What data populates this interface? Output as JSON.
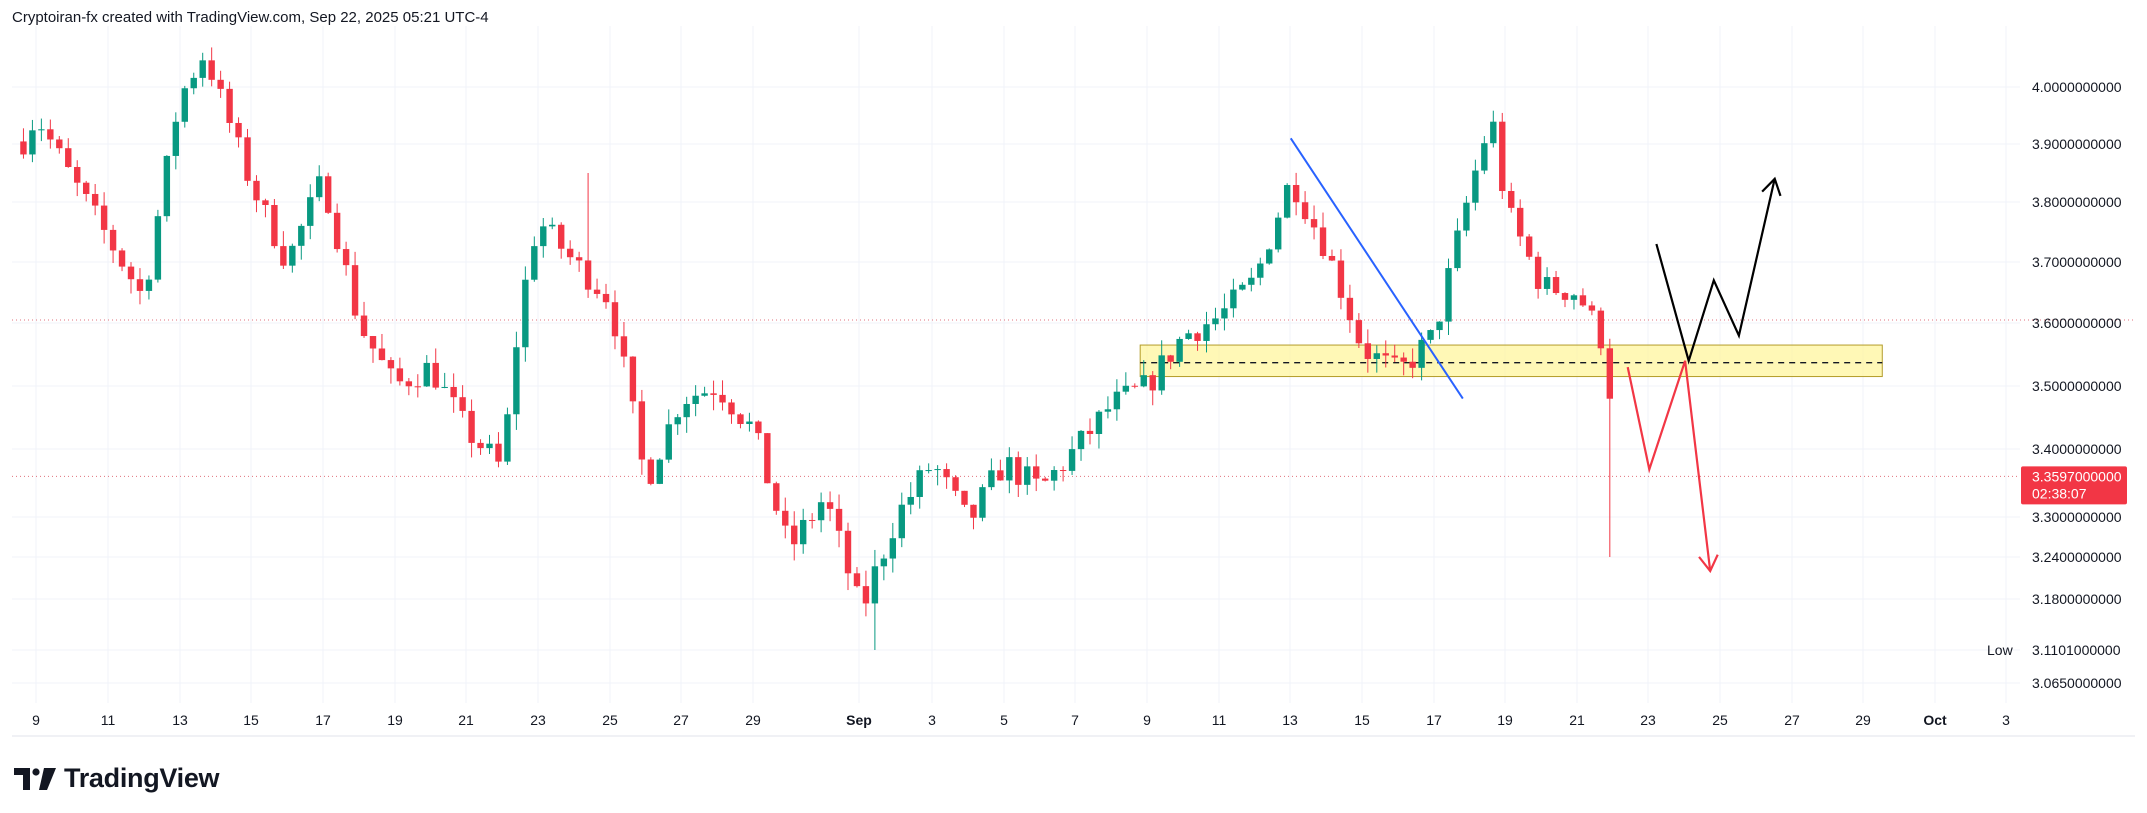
{
  "header": {
    "attribution": "Cryptoiran-fx created with TradingView.com, Sep 22, 2025 05:21 UTC-4"
  },
  "branding": {
    "logo_icon": "tradingview-logo-icon",
    "name": "TradingView"
  },
  "colors": {
    "up": "#089981",
    "down": "#f23645",
    "trendline": "#2962ff",
    "zone_fill": "#fff59d",
    "zone_stroke": "#b39c2a",
    "last_price_bg": "#f23645",
    "ref_line": "#e0727c"
  },
  "chart_data": {
    "type": "candlestick",
    "title": "",
    "xlabel": "",
    "ylabel": "",
    "ylim": [
      3.05,
      4.08
    ],
    "grid": true,
    "x_ticks": [
      "9",
      "11",
      "13",
      "15",
      "17",
      "19",
      "21",
      "23",
      "25",
      "27",
      "29",
      "Sep",
      "3",
      "5",
      "7",
      "9",
      "11",
      "13",
      "15",
      "17",
      "19",
      "21",
      "23",
      "25",
      "27",
      "29",
      "Oct",
      "3"
    ],
    "y_ticks": [
      "4.0000000000",
      "3.9000000000",
      "3.8000000000",
      "3.7000000000",
      "3.6000000000",
      "3.5000000000",
      "3.4000000000",
      "3.3000000000",
      "3.2400000000",
      "3.1800000000",
      "3.1101000000",
      "3.0650000000"
    ],
    "low_label": "Low",
    "low_value": 3.1101,
    "last_price": {
      "value": "3.3597000000",
      "countdown": "02:38:07"
    },
    "reference_level": 3.605,
    "path_anchors": [
      {
        "date": "Aug 8",
        "price": 3.82
      },
      {
        "date": "Aug 9",
        "price": 3.95
      },
      {
        "date": "Aug 10",
        "price": 3.84
      },
      {
        "date": "Aug 11",
        "price": 3.74
      },
      {
        "date": "Aug 12",
        "price": 3.64
      },
      {
        "date": "Aug 13",
        "price": 3.98
      },
      {
        "date": "Aug 13.7",
        "price": 4.06
      },
      {
        "date": "Aug 15",
        "price": 3.83
      },
      {
        "date": "Aug 16",
        "price": 3.7
      },
      {
        "date": "Aug 17",
        "price": 3.84
      },
      {
        "date": "Aug 18",
        "price": 3.6
      },
      {
        "date": "Aug 19",
        "price": 3.5
      },
      {
        "date": "Aug 20",
        "price": 3.53
      },
      {
        "date": "Aug 21",
        "price": 3.43
      },
      {
        "date": "Aug 22",
        "price": 3.37
      },
      {
        "date": "Aug 22.5",
        "price": 3.62
      },
      {
        "date": "Aug 23",
        "price": 3.77
      },
      {
        "date": "Aug 24",
        "price": 3.7
      },
      {
        "date": "Aug 25",
        "price": 3.64
      },
      {
        "date": "Aug 25.5",
        "price": 3.5
      },
      {
        "date": "Aug 26",
        "price": 3.35
      },
      {
        "date": "Aug 27",
        "price": 3.48
      },
      {
        "date": "Aug 28",
        "price": 3.5
      },
      {
        "date": "Aug 29",
        "price": 3.43
      },
      {
        "date": "Aug 30",
        "price": 3.25
      },
      {
        "date": "Aug 31",
        "price": 3.33
      },
      {
        "date": "Sep 1",
        "price": 3.16
      },
      {
        "date": "Sep 2",
        "price": 3.3
      },
      {
        "date": "Sep 3",
        "price": 3.38
      },
      {
        "date": "Sep 4",
        "price": 3.29
      },
      {
        "date": "Sep 5",
        "price": 3.38
      },
      {
        "date": "Sep 6",
        "price": 3.34
      },
      {
        "date": "Sep 7",
        "price": 3.4
      },
      {
        "date": "Sep 8",
        "price": 3.47
      },
      {
        "date": "Sep 9",
        "price": 3.5
      },
      {
        "date": "Sep 10",
        "price": 3.58
      },
      {
        "date": "Sep 11",
        "price": 3.61
      },
      {
        "date": "Sep 12",
        "price": 3.67
      },
      {
        "date": "Sep 13",
        "price": 3.84
      },
      {
        "date": "Sep 14",
        "price": 3.72
      },
      {
        "date": "Sep 15",
        "price": 3.56
      },
      {
        "date": "Sep 16",
        "price": 3.52
      },
      {
        "date": "Sep 17",
        "price": 3.58
      },
      {
        "date": "Sep 18",
        "price": 3.82
      },
      {
        "date": "Sep 18.6",
        "price": 3.95
      },
      {
        "date": "Sep 19",
        "price": 3.79
      },
      {
        "date": "Sep 20",
        "price": 3.66
      },
      {
        "date": "Sep 21",
        "price": 3.65
      },
      {
        "date": "Sep 21.8",
        "price": 3.56
      },
      {
        "date": "Sep 22.1",
        "price": 3.36
      }
    ],
    "annotations": [
      {
        "type": "trendline",
        "from": {
          "date": "Sep 13",
          "price": 3.91
        },
        "to": {
          "date": "Sep 17.8",
          "price": 3.48
        }
      },
      {
        "type": "zone",
        "from_date": "Sep 8.8",
        "to_date": "Sep 29.5",
        "top": 3.565,
        "bottom": 3.515,
        "midline": 3.537
      },
      {
        "type": "projection-up",
        "points": [
          {
            "date": "Sep 23.2",
            "price": 3.73
          },
          {
            "date": "Sep 24.1",
            "price": 3.54
          },
          {
            "date": "Sep 24.8",
            "price": 3.67
          },
          {
            "date": "Sep 25.5",
            "price": 3.58
          },
          {
            "date": "Sep 26.5",
            "price": 3.84
          }
        ]
      },
      {
        "type": "projection-down",
        "points": [
          {
            "date": "Sep 22.4",
            "price": 3.53
          },
          {
            "date": "Sep 23",
            "price": 3.37
          },
          {
            "date": "Sep 24",
            "price": 3.54
          },
          {
            "date": "Sep 24.7",
            "price": 3.22
          }
        ]
      }
    ]
  }
}
